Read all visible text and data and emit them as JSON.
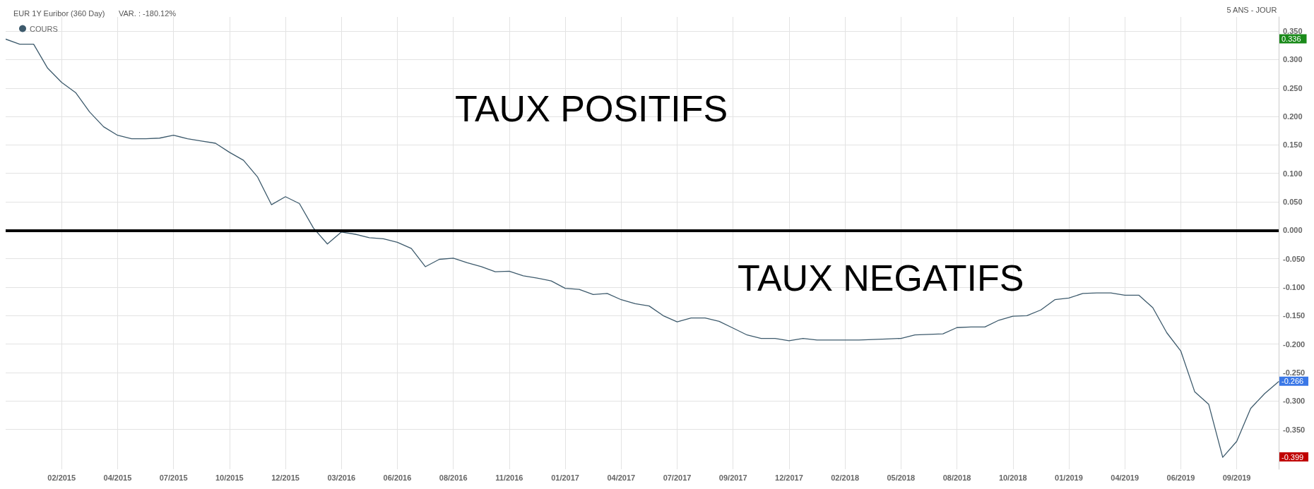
{
  "chart_data": {
    "type": "line",
    "title": "EUR 1Y Euribor (360 Day)",
    "subtitle": "VAR. : -180.12%",
    "categories": [
      null,
      null,
      null,
      null,
      "02/2015",
      null,
      null,
      null,
      "04/2015",
      null,
      null,
      null,
      "07/2015",
      null,
      null,
      null,
      "10/2015",
      null,
      null,
      null,
      "12/2015",
      null,
      null,
      null,
      "03/2016",
      null,
      null,
      null,
      "06/2016",
      null,
      null,
      null,
      "08/2016",
      null,
      null,
      null,
      "11/2016",
      null,
      null,
      null,
      "01/2017",
      null,
      null,
      null,
      "04/2017",
      null,
      null,
      null,
      "07/2017",
      null,
      null,
      null,
      "09/2017",
      null,
      null,
      null,
      "12/2017",
      null,
      null,
      null,
      "02/2018",
      null,
      null,
      null,
      "05/2018",
      null,
      null,
      null,
      "08/2018",
      null,
      null,
      null,
      "10/2018",
      null,
      null,
      null,
      "01/2019",
      null,
      null,
      null,
      "04/2019",
      null,
      null,
      null,
      "06/2019",
      null,
      null,
      null,
      "09/2019",
      null,
      null,
      null
    ],
    "series": [
      {
        "name": "COURS",
        "color": "#3d5a6c",
        "values": [
          0.336,
          0.327,
          0.327,
          0.285,
          0.26,
          0.242,
          0.208,
          0.182,
          0.167,
          0.161,
          0.161,
          0.162,
          0.167,
          0.161,
          0.157,
          0.153,
          0.137,
          0.123,
          0.094,
          0.045,
          0.059,
          0.047,
          0.004,
          -0.024,
          -0.003,
          -0.007,
          -0.013,
          -0.015,
          -0.021,
          -0.032,
          -0.064,
          -0.051,
          -0.049,
          -0.057,
          -0.064,
          -0.073,
          -0.072,
          -0.08,
          -0.084,
          -0.089,
          -0.102,
          -0.104,
          -0.113,
          -0.111,
          -0.122,
          -0.129,
          -0.133,
          -0.15,
          -0.161,
          -0.154,
          -0.154,
          -0.16,
          -0.172,
          -0.184,
          -0.19,
          -0.19,
          -0.194,
          -0.19,
          -0.193,
          -0.193,
          -0.193,
          -0.193,
          -0.192,
          -0.191,
          -0.19,
          -0.184,
          -0.183,
          -0.182,
          -0.171,
          -0.17,
          -0.17,
          -0.158,
          -0.151,
          -0.15,
          -0.14,
          -0.122,
          -0.119,
          -0.111,
          -0.11,
          -0.11,
          -0.114,
          -0.114,
          -0.136,
          -0.18,
          -0.212,
          -0.284,
          -0.306,
          -0.399,
          -0.371,
          -0.313,
          -0.287,
          -0.266
        ]
      }
    ],
    "ylim": [
      -0.42,
      0.375
    ],
    "yticks": [
      {
        "value": -0.35,
        "label": "-0.350"
      },
      {
        "value": -0.3,
        "label": "-0.300"
      },
      {
        "value": -0.25,
        "label": "-0.250"
      },
      {
        "value": -0.2,
        "label": "-0.200"
      },
      {
        "value": -0.15,
        "label": "-0.150"
      },
      {
        "value": -0.1,
        "label": "-0.100"
      },
      {
        "value": -0.05,
        "label": "-0.050"
      },
      {
        "value": 0,
        "label": "0.000"
      },
      {
        "value": 0.05,
        "label": "0.050"
      },
      {
        "value": 0.1,
        "label": "0.100"
      },
      {
        "value": 0.15,
        "label": "0.150"
      },
      {
        "value": 0.2,
        "label": "0.200"
      },
      {
        "value": 0.25,
        "label": "0.250"
      },
      {
        "value": 0.3,
        "label": "0.300"
      },
      {
        "value": 0.35,
        "label": "0.350"
      }
    ],
    "ref_lines": [
      {
        "axis": "y",
        "value": 0,
        "color": "#000000"
      }
    ],
    "annotations": [
      "5 ANS - JOUR",
      "TAUX POSITIFS",
      "TAUX NEGATIFS",
      "0.336",
      "-0.266",
      "-0.399"
    ],
    "grid": true,
    "legend": "top left",
    "marker": "none",
    "line_style": "solid"
  }
}
